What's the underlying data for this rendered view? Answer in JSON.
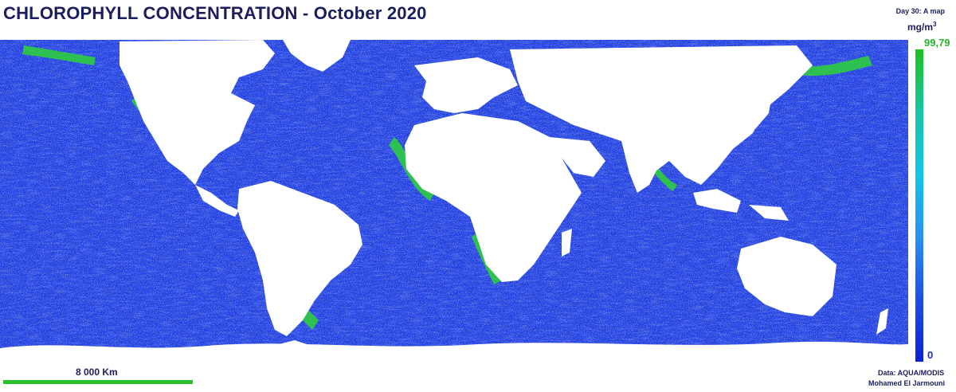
{
  "header": {
    "title": "CHLOROPHYLL CONCENTRATION - October 2020",
    "day_note": "Day 30: A map"
  },
  "legend": {
    "unit": "mg/m",
    "unit_sup": "3",
    "max_label": "99,79",
    "min_label": "0",
    "gradient": [
      "#1ec21e",
      "#17c5a6",
      "#12c6e6",
      "#2a8ff0",
      "#1b4fe6",
      "#0a22d6"
    ]
  },
  "scalebar": {
    "label": "8 000 Km",
    "color": "#2bbf2b"
  },
  "credits": {
    "data_source": "Data: AQUA/MODIS",
    "author": "Mohamed El Jarmouni"
  },
  "colors": {
    "ocean": "#1f3fe0",
    "land": "#ffffff",
    "high_chlorophyll": "#2ecc40",
    "title": "#1a1f5c"
  }
}
